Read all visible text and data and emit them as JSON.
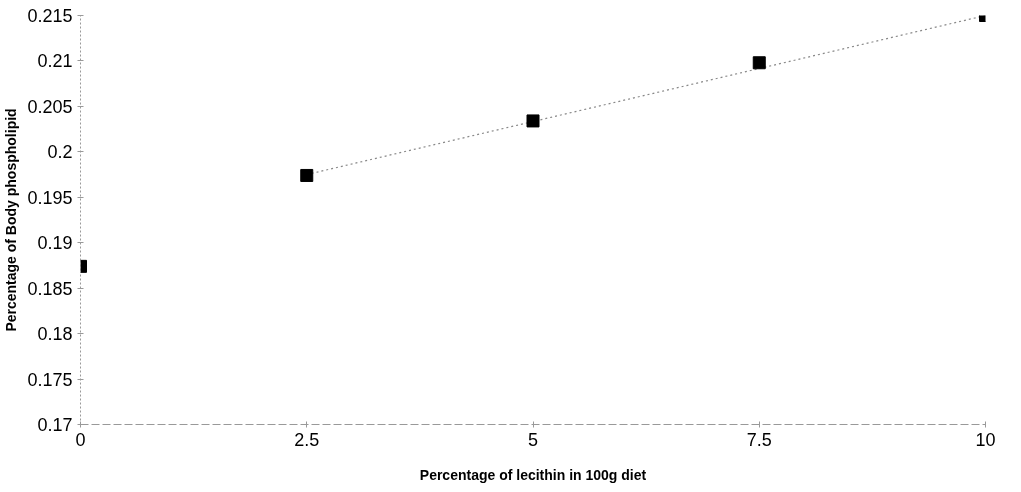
{
  "chart_data": {
    "type": "scatter",
    "xlabel": "Percentage of lecithin in 100g diet",
    "ylabel": "Percentage of Body phospholipid",
    "x": [
      0,
      2.5,
      5,
      7.5,
      10
    ],
    "series": [
      {
        "color": "#000000",
        "marker": "square",
        "values": [
          0.1874,
          0.1974,
          0.2034,
          0.2098,
          0.215
        ]
      },
      {
        "type": "line",
        "color": "#888888",
        "line_style": "dotted",
        "marker": "none",
        "x": [
          2.5,
          10
        ],
        "values": [
          0.1975,
          0.215
        ]
      }
    ],
    "xlim": [
      0,
      10
    ],
    "ylim": [
      0.17,
      0.215
    ],
    "xticks": [
      0,
      2.5,
      5,
      7.5,
      10
    ],
    "yticks": [
      0.17,
      0.175,
      0.18,
      0.185,
      0.19,
      0.195,
      0.2,
      0.205,
      0.21,
      0.215
    ]
  }
}
